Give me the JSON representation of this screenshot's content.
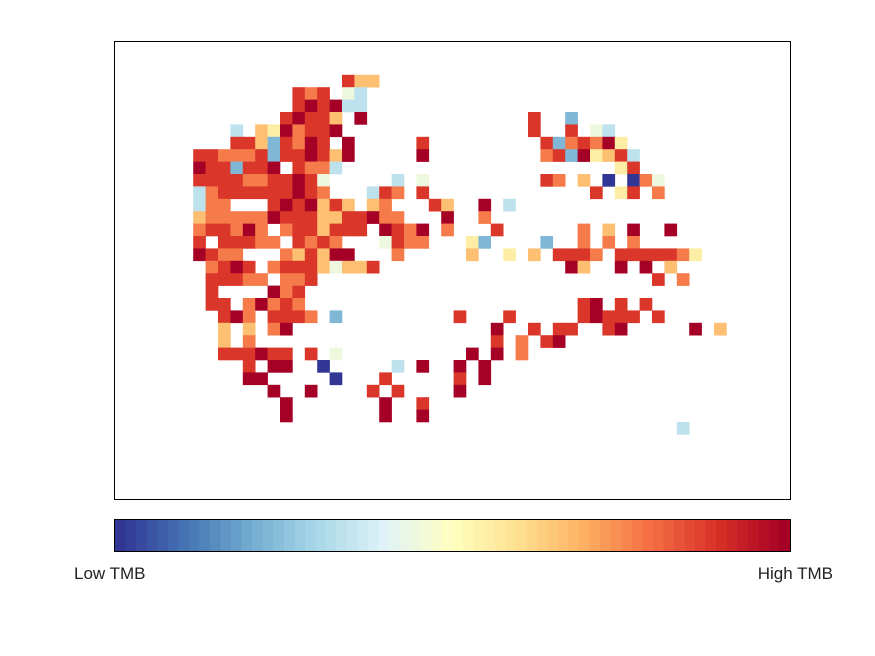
{
  "chart_data": {
    "type": "heatmap",
    "title": "",
    "xlabel": "",
    "ylabel": "",
    "grid": false,
    "legend": "colorbar-bottom",
    "colorbar": {
      "low_label": "Low TMB",
      "high_label": "High TMB",
      "colormap": "RdYlBu-reversed",
      "stops": [
        "#313695",
        "#4575b4",
        "#74add1",
        "#abd9e9",
        "#e0f3f8",
        "#ffffbf",
        "#fee090",
        "#fdae61",
        "#f46d43",
        "#d73027",
        "#a50026"
      ]
    },
    "grid_size": {
      "cols": 48,
      "rows": 33
    },
    "encoding": "each row string lists one character per column; '.' = empty, 0-9 = TMB level low->high",
    "rows": [
      "................................................",
      "................................................",
      "...............866..............................",
      "...........878.43...............................",
      "...........898933...............................",
      "..........89886.9.............8..2..............",
      "......3.6597889...............8..8.43...........",
      "......88628798.9.....8.........8278795..........",
      "...8877782889869.....9.........78295683.........",
      "...9882889.8773......................58.........",
      "...88887788984.....3.4.........87.6.0.074.......",
      "...37888888987...387.8.............8.58.7.......",
      "...377...8989686.67...86..9.3...................",
      "...67777798886688977...9..7.....................",
      "...788797.7886888.9879.7...8......7.6.9..9......",
      "...8.88877.8787...4877...52....2..7.7.7.........",
      "...9877...768699...7.....6..5.6.8887.8888875....",
      "....7898.788864668...............96..9.9.6......",
      "....88877.778...........................8.7.....",
      "....8....978....................................",
      "....88.79787......................89.8.8........",
      ".....897.8887.2.........8...8.....89888.8.......",
      ".....6.6.79................9..8.88..89.....9.6..",
      ".....6.7...................8.7.89...............",
      ".....888988.8.4..........9.9.7..................",
      ".......8.99..0.....3.9..9.9.....................",
      ".......99.....0...8.....8.9.....................",
      ".........9..9....8.8....9.......................",
      "..........9.......9..8..........................",
      "..........9.......9..9..........................",
      "..........................................3.....",
      "................................................",
      "................................................"
    ]
  }
}
